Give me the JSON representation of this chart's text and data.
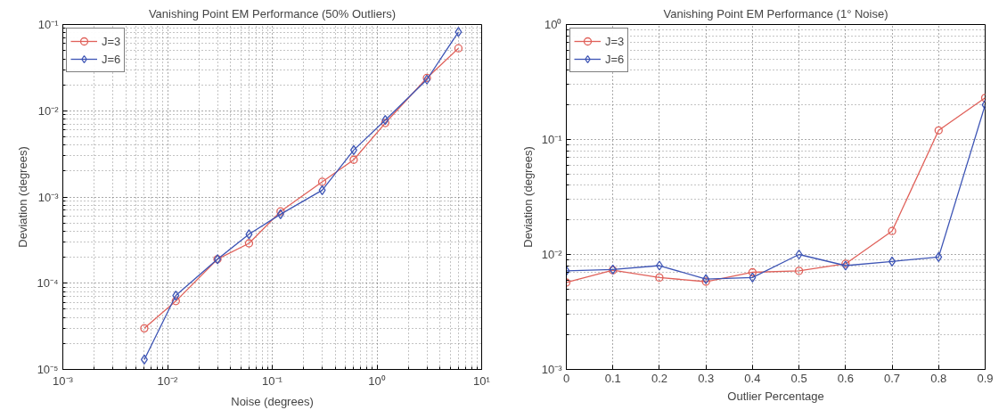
{
  "chart_data": [
    {
      "type": "line",
      "title": "Vanishing Point EM Performance (50% Outliers)",
      "xlabel": "Noise (degrees)",
      "ylabel": "Deviation (degrees)",
      "log": "xy",
      "grid": true,
      "legend": "top left",
      "line_style": "solid",
      "x": [
        0.006,
        0.012,
        0.03,
        0.06,
        0.12,
        0.3,
        0.6,
        1.2,
        3,
        6
      ],
      "xlim": [
        0.001,
        10
      ],
      "ylim": [
        1e-05,
        0.1
      ],
      "xticks": [
        {
          "value": 0.001,
          "label": "10⁻³"
        },
        {
          "value": 0.01,
          "label": "10⁻²"
        },
        {
          "value": 0.1,
          "label": "10⁻¹"
        },
        {
          "value": 1,
          "label": "10⁰"
        },
        {
          "value": 10,
          "label": "10¹"
        }
      ],
      "yticks": [
        {
          "value": 1e-05,
          "label": "10⁻⁵"
        },
        {
          "value": 0.0001,
          "label": "10⁻⁴"
        },
        {
          "value": 0.001,
          "label": "10⁻³"
        },
        {
          "value": 0.01,
          "label": "10⁻²"
        },
        {
          "value": 0.1,
          "label": "10⁻¹"
        }
      ],
      "series": [
        {
          "name": "J=3",
          "color": "#e0615a",
          "marker": "circle",
          "values": [
            3e-05,
            6.2e-05,
            0.00019,
            0.00029,
            0.00068,
            0.0015,
            0.0027,
            0.0072,
            0.024,
            0.053
          ]
        },
        {
          "name": "J=6",
          "color": "#3e55b5",
          "marker": "diamond",
          "values": [
            1.3e-05,
            7.2e-05,
            0.00019,
            0.00037,
            0.00063,
            0.0012,
            0.0035,
            0.0078,
            0.023,
            0.082
          ]
        }
      ]
    },
    {
      "type": "line",
      "title": "Vanishing Point EM Performance (1° Noise)",
      "xlabel": "Outlier Percentage",
      "ylabel": "Deviation (degrees)",
      "log": "y",
      "grid": true,
      "legend": "top left",
      "line_style": "solid",
      "x": [
        0,
        0.1,
        0.2,
        0.3,
        0.4,
        0.5,
        0.6,
        0.7,
        0.8,
        0.9
      ],
      "xlim": [
        0,
        0.9
      ],
      "ylim": [
        0.001,
        1
      ],
      "xticks": [
        0,
        0.1,
        0.2,
        0.3,
        0.4,
        0.5,
        0.6,
        0.7,
        0.8,
        0.9
      ],
      "yticks": [
        {
          "value": 0.001,
          "label": "10⁻³"
        },
        {
          "value": 0.01,
          "label": "10⁻²"
        },
        {
          "value": 0.1,
          "label": "10⁻¹"
        },
        {
          "value": 1,
          "label": "10⁰"
        }
      ],
      "series": [
        {
          "name": "J=3",
          "color": "#e0615a",
          "marker": "circle",
          "values": [
            0.0057,
            0.0073,
            0.0063,
            0.0058,
            0.007,
            0.0072,
            0.0083,
            0.016,
            0.12,
            0.23
          ]
        },
        {
          "name": "J=6",
          "color": "#3e55b5",
          "marker": "diamond",
          "values": [
            0.0072,
            0.0074,
            0.008,
            0.0061,
            0.0063,
            0.01,
            0.008,
            0.0087,
            0.0095,
            0.2
          ]
        }
      ]
    }
  ]
}
